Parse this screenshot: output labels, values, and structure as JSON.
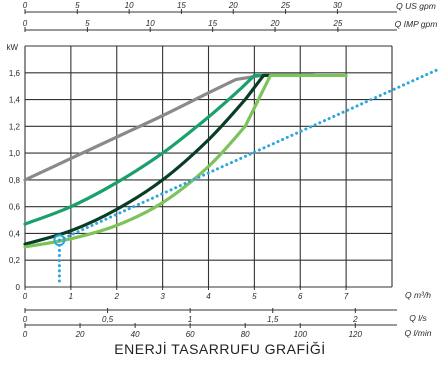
{
  "chart_data": {
    "type": "line",
    "title": "ENERJİ TASARRUFU GRAFİĞİ",
    "ylabel": "kW",
    "ylim": [
      0,
      1.8
    ],
    "yticks": [
      "0",
      "0,2",
      "0,4",
      "0,6",
      "0,8",
      "1,0",
      "1,2",
      "1,4",
      "1,6"
    ],
    "xlim": [
      0,
      8
    ],
    "grid": true,
    "bottom_axes": [
      {
        "unit": "Q m³/h",
        "ticks": [
          {
            "v": 0,
            "label": "0"
          },
          {
            "v": 1,
            "label": "1"
          },
          {
            "v": 2,
            "label": "2"
          },
          {
            "v": 3,
            "label": "3"
          },
          {
            "v": 4,
            "label": "4"
          },
          {
            "v": 5,
            "label": "5"
          },
          {
            "v": 6,
            "label": "6"
          },
          {
            "v": 7,
            "label": "7"
          }
        ]
      },
      {
        "unit": "Q l/s",
        "ticks": [
          {
            "v": 0,
            "label": "0"
          },
          {
            "v": 1.8,
            "label": "0,5"
          },
          {
            "v": 3.6,
            "label": "1"
          },
          {
            "v": 5.4,
            "label": "1,5"
          },
          {
            "v": 7.2,
            "label": "2"
          }
        ]
      },
      {
        "unit": "Q l/min",
        "ticks": [
          {
            "v": 0,
            "label": "0"
          },
          {
            "v": 1.2,
            "label": "20"
          },
          {
            "v": 2.4,
            "label": "40"
          },
          {
            "v": 3.6,
            "label": "60"
          },
          {
            "v": 4.8,
            "label": "80"
          },
          {
            "v": 6.0,
            "label": "100"
          },
          {
            "v": 7.2,
            "label": "120"
          }
        ]
      }
    ],
    "top_axes": [
      {
        "unit": "Q US gpm",
        "ticks": [
          {
            "v": 0,
            "label": "0"
          },
          {
            "v": 1.14,
            "label": "5"
          },
          {
            "v": 2.27,
            "label": "10"
          },
          {
            "v": 3.41,
            "label": "15"
          },
          {
            "v": 4.54,
            "label": "20"
          },
          {
            "v": 5.68,
            "label": "25"
          },
          {
            "v": 6.81,
            "label": "30"
          }
        ]
      },
      {
        "unit": "Q IMP gpm",
        "ticks": [
          {
            "v": 0,
            "label": "0"
          },
          {
            "v": 1.36,
            "label": "5"
          },
          {
            "v": 2.73,
            "label": "10"
          },
          {
            "v": 4.09,
            "label": "15"
          },
          {
            "v": 5.45,
            "label": "20"
          },
          {
            "v": 6.82,
            "label": "25"
          }
        ]
      }
    ],
    "series": [
      {
        "color": "#8a8a8a",
        "style": "solid",
        "x": [
          0,
          1,
          2,
          3,
          4,
          4.6,
          5.15,
          6.3
        ],
        "y": [
          0.8,
          0.96,
          1.12,
          1.28,
          1.45,
          1.55,
          1.58,
          1.58
        ]
      },
      {
        "color": "#1aa06a",
        "style": "solid",
        "x": [
          0,
          1,
          2,
          3,
          4,
          4.7,
          5.0,
          6.3
        ],
        "y": [
          0.47,
          0.6,
          0.78,
          1.0,
          1.27,
          1.48,
          1.58,
          1.58
        ]
      },
      {
        "color": "#0a3d26",
        "style": "solid",
        "x": [
          0,
          1,
          2,
          3,
          4,
          4.8,
          5.2,
          6.3
        ],
        "y": [
          0.32,
          0.42,
          0.58,
          0.8,
          1.1,
          1.4,
          1.58,
          1.58
        ]
      },
      {
        "color": "#7cc35a",
        "style": "solid",
        "x": [
          0,
          1,
          2,
          3,
          4,
          4.8,
          5.35,
          7.0
        ],
        "y": [
          0.3,
          0.36,
          0.46,
          0.63,
          0.9,
          1.2,
          1.58,
          1.58
        ]
      },
      {
        "color": "#2aa7dc",
        "style": "dotted",
        "x": [
          0.75,
          8.0
        ],
        "y": [
          0.35,
          1.47
        ]
      }
    ],
    "annotations": [
      {
        "type": "marker-circle",
        "x": 0.75,
        "y": 0.35,
        "color": "#2aa7dc"
      },
      {
        "type": "dotted-drop",
        "x": 0.75,
        "y_from": 0.35,
        "y_to": 0,
        "color": "#2aa7dc"
      }
    ]
  }
}
